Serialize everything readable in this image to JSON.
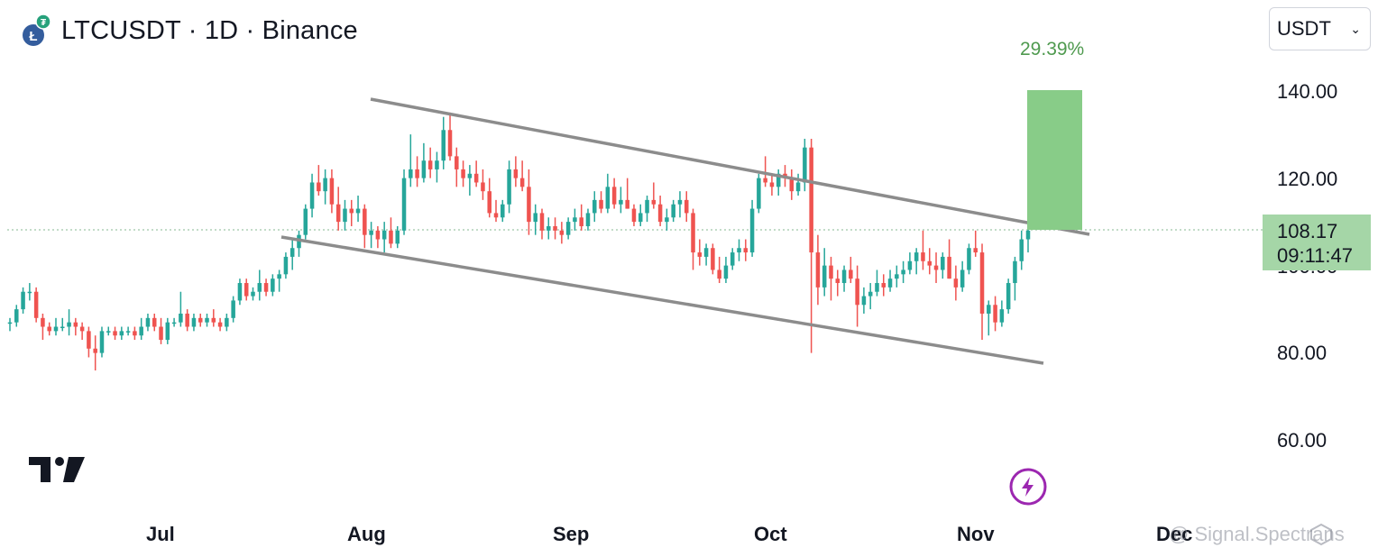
{
  "header": {
    "title": "LTCUSDT · 1D · Binance",
    "icon": "litecoin-tether-icon"
  },
  "currency_select": {
    "value": "USDT"
  },
  "measure_label": "29.39%",
  "last_price": {
    "value": "108.17",
    "countdown": "09:11:47"
  },
  "watermark": "@ Signal.Spectrans",
  "colors": {
    "up": "#26a69a",
    "down": "#ef5350",
    "measure_fill": "#88cc88",
    "channel": "#8c8c8c",
    "last_price_line": "#9fc8a8"
  },
  "chart_data": {
    "type": "candlestick",
    "symbol": "LTCUSDT",
    "interval": "1D",
    "exchange": "Binance",
    "x_labels": [
      "Jul",
      "Aug",
      "Sep",
      "Oct",
      "Nov",
      "Dec"
    ],
    "y_ticks": [
      "140.00",
      "120.00",
      "100.00",
      "80.00",
      "60.00"
    ],
    "ylim": [
      50,
      148
    ],
    "last_close": 108.17,
    "candles": [
      [
        87,
        88,
        85,
        87
      ],
      [
        87,
        91,
        86,
        90
      ],
      [
        90,
        95,
        89,
        94
      ],
      [
        94,
        96,
        92,
        94
      ],
      [
        94,
        95,
        87,
        88
      ],
      [
        88,
        89,
        83,
        86
      ],
      [
        86,
        87,
        84,
        85
      ],
      [
        85,
        88,
        84,
        86
      ],
      [
        86,
        88,
        85,
        86
      ],
      [
        86,
        90,
        84,
        87
      ],
      [
        87,
        88,
        84,
        86
      ],
      [
        86,
        87,
        83,
        85
      ],
      [
        85,
        86,
        79,
        81
      ],
      [
        81,
        84,
        76,
        80
      ],
      [
        80,
        86,
        79,
        85
      ],
      [
        85,
        86,
        84,
        85
      ],
      [
        85,
        86,
        83,
        84
      ],
      [
        84,
        86,
        83,
        85
      ],
      [
        85,
        86,
        84,
        85
      ],
      [
        85,
        86,
        83,
        84
      ],
      [
        84,
        88,
        83,
        86
      ],
      [
        86,
        89,
        85,
        88
      ],
      [
        88,
        89,
        85,
        86
      ],
      [
        86,
        88,
        82,
        83
      ],
      [
        83,
        88,
        82,
        87
      ],
      [
        87,
        88,
        86,
        87
      ],
      [
        87,
        94,
        86,
        89
      ],
      [
        89,
        90,
        85,
        86
      ],
      [
        86,
        89,
        85,
        88
      ],
      [
        88,
        89,
        86,
        87
      ],
      [
        87,
        89,
        86,
        88
      ],
      [
        88,
        90,
        86,
        87
      ],
      [
        87,
        88,
        85,
        86
      ],
      [
        86,
        89,
        85,
        88
      ],
      [
        88,
        93,
        87,
        92
      ],
      [
        92,
        97,
        91,
        96
      ],
      [
        96,
        97,
        92,
        93
      ],
      [
        93,
        95,
        92,
        94
      ],
      [
        94,
        99,
        92,
        96
      ],
      [
        96,
        97,
        93,
        94
      ],
      [
        94,
        98,
        93,
        97
      ],
      [
        97,
        99,
        94,
        98
      ],
      [
        98,
        103,
        97,
        102
      ],
      [
        102,
        106,
        99,
        104
      ],
      [
        104,
        108,
        102,
        107
      ],
      [
        107,
        114,
        106,
        113
      ],
      [
        113,
        121,
        111,
        119
      ],
      [
        119,
        123,
        116,
        117
      ],
      [
        117,
        122,
        114,
        120
      ],
      [
        120,
        122,
        112,
        114
      ],
      [
        114,
        118,
        108,
        110
      ],
      [
        110,
        115,
        108,
        113
      ],
      [
        113,
        115,
        109,
        112
      ],
      [
        112,
        116,
        110,
        113
      ],
      [
        113,
        114,
        104,
        107
      ],
      [
        107,
        110,
        104,
        108
      ],
      [
        108,
        109,
        104,
        106
      ],
      [
        106,
        110,
        103,
        108
      ],
      [
        108,
        111,
        104,
        105
      ],
      [
        105,
        109,
        104,
        108
      ],
      [
        108,
        122,
        107,
        120
      ],
      [
        120,
        130,
        118,
        122
      ],
      [
        122,
        125,
        118,
        120
      ],
      [
        120,
        128,
        119,
        124
      ],
      [
        124,
        127,
        120,
        122
      ],
      [
        122,
        126,
        119,
        124
      ],
      [
        124,
        134,
        122,
        131
      ],
      [
        131,
        135,
        124,
        125
      ],
      [
        125,
        127,
        118,
        122
      ],
      [
        122,
        124,
        118,
        120
      ],
      [
        120,
        123,
        116,
        121
      ],
      [
        121,
        124,
        118,
        119
      ],
      [
        119,
        122,
        115,
        117
      ],
      [
        117,
        120,
        111,
        112
      ],
      [
        112,
        115,
        110,
        111
      ],
      [
        111,
        115,
        110,
        114
      ],
      [
        114,
        124,
        112,
        122
      ],
      [
        122,
        125,
        118,
        120
      ],
      [
        120,
        124,
        117,
        118
      ],
      [
        118,
        122,
        107,
        110
      ],
      [
        110,
        114,
        107,
        112
      ],
      [
        112,
        113,
        106,
        108
      ],
      [
        108,
        111,
        106,
        109
      ],
      [
        109,
        111,
        106,
        108
      ],
      [
        108,
        110,
        105,
        107
      ],
      [
        107,
        111,
        106,
        110
      ],
      [
        110,
        113,
        108,
        111
      ],
      [
        111,
        114,
        108,
        109
      ],
      [
        109,
        113,
        108,
        112
      ],
      [
        112,
        117,
        110,
        115
      ],
      [
        115,
        117,
        112,
        113
      ],
      [
        113,
        121,
        112,
        118
      ],
      [
        118,
        120,
        113,
        114
      ],
      [
        114,
        118,
        112,
        115
      ],
      [
        115,
        120,
        113,
        113
      ],
      [
        113,
        114,
        109,
        110
      ],
      [
        110,
        114,
        109,
        112
      ],
      [
        112,
        116,
        110,
        115
      ],
      [
        115,
        119,
        113,
        114
      ],
      [
        114,
        116,
        109,
        110
      ],
      [
        110,
        113,
        108,
        111
      ],
      [
        111,
        115,
        110,
        114
      ],
      [
        114,
        117,
        111,
        115
      ],
      [
        115,
        117,
        110,
        112
      ],
      [
        112,
        113,
        99,
        103
      ],
      [
        103,
        106,
        100,
        102
      ],
      [
        102,
        105,
        100,
        104
      ],
      [
        104,
        105,
        98,
        99
      ],
      [
        99,
        102,
        96,
        97
      ],
      [
        97,
        102,
        96,
        100
      ],
      [
        100,
        104,
        99,
        103
      ],
      [
        103,
        106,
        101,
        104
      ],
      [
        104,
        106,
        101,
        103
      ],
      [
        103,
        115,
        102,
        113
      ],
      [
        113,
        121,
        112,
        120
      ],
      [
        120,
        125,
        118,
        119
      ],
      [
        119,
        121,
        116,
        118
      ],
      [
        118,
        122,
        116,
        121
      ],
      [
        121,
        123,
        118,
        120
      ],
      [
        120,
        122,
        115,
        117
      ],
      [
        117,
        121,
        116,
        119
      ],
      [
        119,
        129,
        117,
        127
      ],
      [
        127,
        129,
        80,
        103
      ],
      [
        103,
        107,
        91,
        95
      ],
      [
        95,
        104,
        93,
        100
      ],
      [
        100,
        102,
        92,
        97
      ],
      [
        97,
        99,
        93,
        96
      ],
      [
        96,
        100,
        94,
        99
      ],
      [
        99,
        102,
        96,
        97
      ],
      [
        97,
        100,
        86,
        91
      ],
      [
        91,
        95,
        89,
        93
      ],
      [
        93,
        96,
        90,
        94
      ],
      [
        94,
        99,
        93,
        96
      ],
      [
        96,
        98,
        93,
        95
      ],
      [
        95,
        99,
        94,
        97
      ],
      [
        97,
        100,
        95,
        98
      ],
      [
        98,
        101,
        96,
        99
      ],
      [
        99,
        103,
        98,
        101
      ],
      [
        101,
        104,
        98,
        103
      ],
      [
        103,
        108,
        99,
        101
      ],
      [
        101,
        104,
        98,
        100
      ],
      [
        100,
        103,
        96,
        99
      ],
      [
        99,
        103,
        97,
        102
      ],
      [
        102,
        106,
        97,
        97
      ],
      [
        97,
        100,
        92,
        95
      ],
      [
        95,
        101,
        94,
        99
      ],
      [
        99,
        105,
        98,
        104
      ],
      [
        104,
        108,
        102,
        103
      ],
      [
        103,
        105,
        83,
        89
      ],
      [
        89,
        92,
        84,
        91
      ],
      [
        91,
        93,
        85,
        87
      ],
      [
        87,
        92,
        86,
        90
      ],
      [
        90,
        97,
        89,
        96
      ],
      [
        96,
        102,
        92,
        101
      ],
      [
        101,
        108,
        99,
        106
      ],
      [
        106,
        109,
        103,
        108
      ]
    ]
  }
}
